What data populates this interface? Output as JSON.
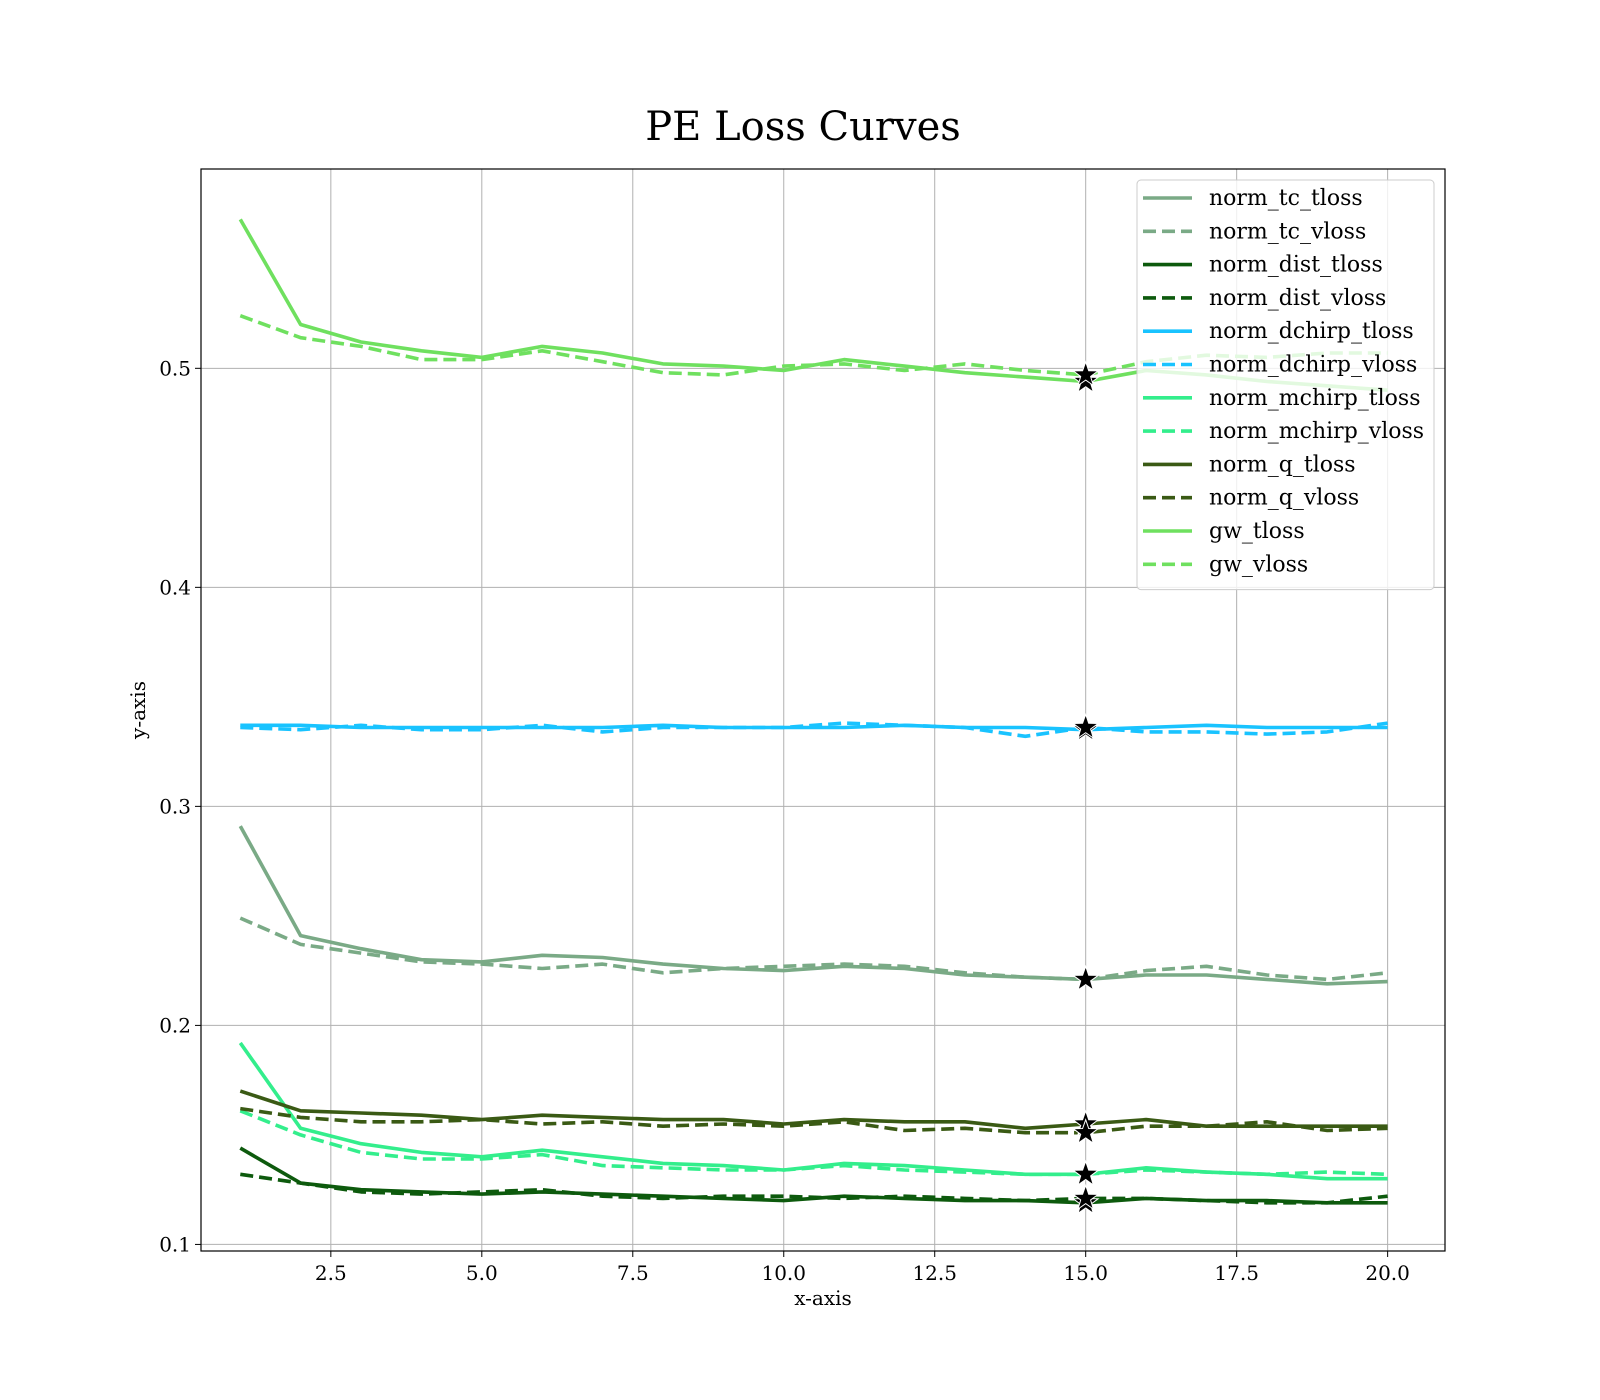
{
  "chart_data": {
    "type": "line",
    "title": "PE Loss Curves",
    "xlabel": "x-axis",
    "ylabel": "y-axis",
    "xlim": [
      0.35,
      20.95
    ],
    "ylim": [
      0.097,
      0.591
    ],
    "xticks": [
      "2.5",
      "5.0",
      "7.5",
      "10.0",
      "12.5",
      "15.0",
      "17.5",
      "20.0"
    ],
    "yticks": [
      "0.1",
      "0.2",
      "0.3",
      "0.4",
      "0.5"
    ],
    "grid": true,
    "legend_position": "top-right",
    "x": [
      1,
      2,
      3,
      4,
      5,
      6,
      7,
      8,
      9,
      10,
      11,
      12,
      13,
      14,
      15,
      16,
      17,
      18,
      19,
      20
    ],
    "best_epoch": 15,
    "series": [
      {
        "name": "norm_tc_tloss",
        "color": "#7aaa86",
        "dash": false,
        "values": [
          0.291,
          0.241,
          0.235,
          0.23,
          0.229,
          0.232,
          0.231,
          0.228,
          0.226,
          0.225,
          0.227,
          0.226,
          0.223,
          0.222,
          0.221,
          0.223,
          0.223,
          0.221,
          0.219,
          0.22
        ]
      },
      {
        "name": "norm_tc_vloss",
        "color": "#7aaa86",
        "dash": true,
        "values": [
          0.249,
          0.237,
          0.233,
          0.229,
          0.228,
          0.226,
          0.228,
          0.224,
          0.226,
          0.227,
          0.228,
          0.227,
          0.224,
          0.222,
          0.221,
          0.225,
          0.227,
          0.223,
          0.221,
          0.224
        ]
      },
      {
        "name": "norm_dist_tloss",
        "color": "#0d5a0d",
        "dash": false,
        "values": [
          0.144,
          0.128,
          0.125,
          0.124,
          0.123,
          0.124,
          0.123,
          0.122,
          0.121,
          0.12,
          0.122,
          0.121,
          0.12,
          0.12,
          0.119,
          0.121,
          0.12,
          0.12,
          0.119,
          0.119
        ]
      },
      {
        "name": "norm_dist_vloss",
        "color": "#0d5a0d",
        "dash": true,
        "values": [
          0.132,
          0.128,
          0.124,
          0.123,
          0.124,
          0.125,
          0.122,
          0.121,
          0.122,
          0.122,
          0.121,
          0.122,
          0.121,
          0.12,
          0.121,
          0.121,
          0.12,
          0.119,
          0.119,
          0.122
        ]
      },
      {
        "name": "norm_dchirp_tloss",
        "color": "#19c3ff",
        "dash": false,
        "values": [
          0.337,
          0.337,
          0.336,
          0.336,
          0.336,
          0.336,
          0.336,
          0.337,
          0.336,
          0.336,
          0.336,
          0.337,
          0.336,
          0.336,
          0.335,
          0.336,
          0.337,
          0.336,
          0.336,
          0.336
        ]
      },
      {
        "name": "norm_dchirp_vloss",
        "color": "#19c3ff",
        "dash": true,
        "values": [
          0.336,
          0.335,
          0.337,
          0.335,
          0.335,
          0.337,
          0.334,
          0.336,
          0.336,
          0.336,
          0.338,
          0.337,
          0.336,
          0.332,
          0.336,
          0.334,
          0.334,
          0.333,
          0.334,
          0.338
        ]
      },
      {
        "name": "norm_mchirp_tloss",
        "color": "#33ee8c",
        "dash": false,
        "values": [
          0.192,
          0.153,
          0.146,
          0.142,
          0.14,
          0.143,
          0.14,
          0.137,
          0.136,
          0.134,
          0.137,
          0.136,
          0.134,
          0.132,
          0.132,
          0.135,
          0.133,
          0.132,
          0.13,
          0.13
        ]
      },
      {
        "name": "norm_mchirp_vloss",
        "color": "#33ee8c",
        "dash": true,
        "values": [
          0.161,
          0.15,
          0.142,
          0.139,
          0.139,
          0.141,
          0.136,
          0.135,
          0.134,
          0.134,
          0.136,
          0.134,
          0.133,
          0.132,
          0.132,
          0.134,
          0.133,
          0.132,
          0.133,
          0.132
        ]
      },
      {
        "name": "norm_q_tloss",
        "color": "#3a5a14",
        "dash": false,
        "values": [
          0.17,
          0.161,
          0.16,
          0.159,
          0.157,
          0.159,
          0.158,
          0.157,
          0.157,
          0.155,
          0.157,
          0.156,
          0.156,
          0.153,
          0.155,
          0.157,
          0.154,
          0.154,
          0.154,
          0.154
        ]
      },
      {
        "name": "norm_q_vloss",
        "color": "#3a5a14",
        "dash": true,
        "values": [
          0.162,
          0.158,
          0.156,
          0.156,
          0.157,
          0.155,
          0.156,
          0.154,
          0.155,
          0.154,
          0.156,
          0.152,
          0.153,
          0.151,
          0.151,
          0.154,
          0.154,
          0.156,
          0.152,
          0.153
        ]
      },
      {
        "name": "gw_tloss",
        "color": "#6fe05f",
        "dash": false,
        "values": [
          0.568,
          0.52,
          0.512,
          0.508,
          0.505,
          0.51,
          0.507,
          0.502,
          0.501,
          0.499,
          0.504,
          0.501,
          0.498,
          0.496,
          0.494,
          0.499,
          0.497,
          0.494,
          0.492,
          0.49
        ]
      },
      {
        "name": "gw_vloss",
        "color": "#6fe05f",
        "dash": true,
        "values": [
          0.524,
          0.514,
          0.51,
          0.504,
          0.504,
          0.508,
          0.503,
          0.498,
          0.497,
          0.501,
          0.502,
          0.499,
          0.502,
          0.499,
          0.497,
          0.503,
          0.506,
          0.505,
          0.507,
          0.507
        ]
      }
    ]
  }
}
